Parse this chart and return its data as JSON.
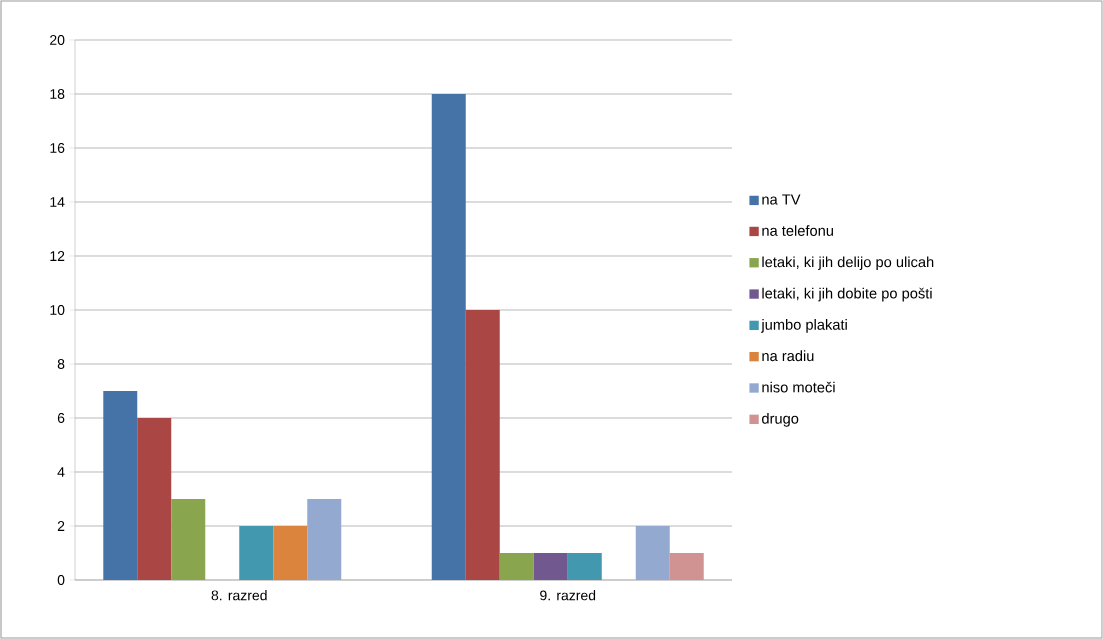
{
  "chart_data": {
    "type": "bar",
    "categories": [
      "8. razred",
      "9. razred"
    ],
    "series": [
      {
        "name": "na TV",
        "color": "#4572a7",
        "values": [
          7,
          18
        ]
      },
      {
        "name": "na telefonu",
        "color": "#aa4643",
        "values": [
          6,
          10
        ]
      },
      {
        "name": "letaki, ki jih delijo po ulicah",
        "color": "#89a54e",
        "values": [
          3,
          1
        ]
      },
      {
        "name": "letaki, ki jih dobite po pošti",
        "color": "#71588f",
        "values": [
          0,
          1
        ]
      },
      {
        "name": "jumbo plakati",
        "color": "#4198af",
        "values": [
          2,
          1
        ]
      },
      {
        "name": "na radiu",
        "color": "#db843d",
        "values": [
          2,
          0
        ]
      },
      {
        "name": "niso moteči",
        "color": "#93a9cf",
        "values": [
          3,
          2
        ]
      },
      {
        "name": "drugo",
        "color": "#d19392",
        "values": [
          0,
          1
        ]
      }
    ],
    "ylim": [
      0,
      20
    ],
    "yticks": [
      0,
      2,
      4,
      6,
      8,
      10,
      12,
      14,
      16,
      18,
      20
    ],
    "grid": "y",
    "legend": "right"
  }
}
